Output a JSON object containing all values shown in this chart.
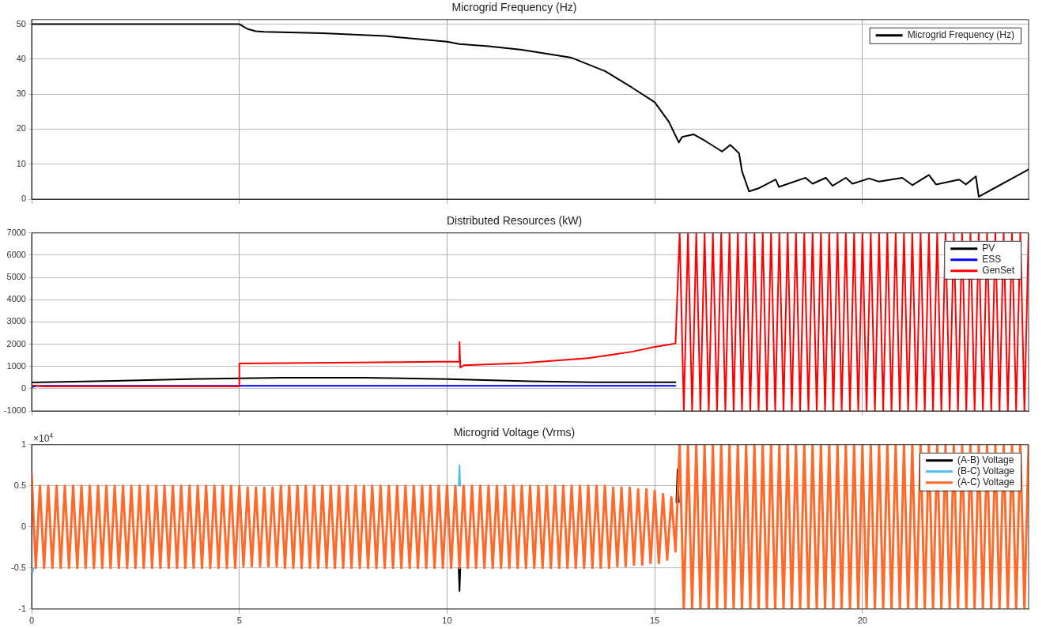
{
  "chart_data": [
    {
      "type": "line",
      "title": "Microgrid Frequency (Hz)",
      "xlim": [
        0,
        24
      ],
      "xticks": [
        0,
        5,
        10,
        15,
        20
      ],
      "ylim": [
        0,
        51.3
      ],
      "yticks": [
        0,
        10,
        20,
        30,
        40,
        50
      ],
      "grid": true,
      "legend": "top right",
      "tick_labels": "y",
      "series": [
        {
          "name": "Microgrid Frequency (Hz)",
          "color": "#000000",
          "x": [
            0,
            5,
            5.1,
            5.2,
            5.4,
            5.6,
            7,
            8.5,
            10,
            10.3,
            11,
            11.8,
            13,
            13.8,
            14.45,
            15,
            15.34,
            15.58,
            15.66,
            15.94,
            16.22,
            16.62,
            16.82,
            17.03,
            17.1,
            17.27,
            17.5,
            17.91,
            17.99,
            18.63,
            18.8,
            19.12,
            19.28,
            19.6,
            19.76,
            20.16,
            20.4,
            20.96,
            21.2,
            21.6,
            21.77,
            22.33,
            22.49,
            22.73,
            22.8,
            24
          ],
          "values": [
            50,
            50,
            49.3,
            48.6,
            48,
            47.8,
            47.4,
            46.6,
            45,
            44.3,
            43.7,
            42.7,
            40.4,
            36.6,
            31.9,
            27.7,
            22.1,
            16.2,
            17.8,
            18.5,
            16.6,
            13.6,
            15.5,
            13.1,
            8,
            2.2,
            3.1,
            5.6,
            3.5,
            6.1,
            4.4,
            6.1,
            3.8,
            6.1,
            4.4,
            5.9,
            5,
            6.1,
            4,
            6.9,
            4.2,
            5.6,
            4.2,
            6.5,
            0.7,
            8.5
          ]
        }
      ]
    },
    {
      "type": "line",
      "title": "Distributed Resources (kW)",
      "xlim": [
        0,
        24
      ],
      "xticks": [
        0,
        5,
        10,
        15,
        20
      ],
      "ylim": [
        -1000,
        7000
      ],
      "yticks": [
        -1000,
        0,
        1000,
        2000,
        3000,
        4000,
        5000,
        6000,
        7000
      ],
      "grid": true,
      "legend": "top right",
      "tick_labels": "y",
      "series": [
        {
          "name": "PV",
          "color": "#000000",
          "x": [
            0,
            2,
            4,
            6,
            8,
            10,
            12,
            13.5,
            15.5
          ],
          "values": [
            280,
            350,
            440,
            490,
            490,
            430,
            330,
            290,
            290
          ]
        },
        {
          "name": "ESS",
          "color": "#0000ff",
          "x": [
            0,
            0.1,
            0.3,
            15.5
          ],
          "values": [
            60,
            120,
            130,
            130
          ]
        },
        {
          "name": "GenSet",
          "color": "#ff0000",
          "x": [
            0,
            0.3,
            5,
            5,
            10.3,
            10.3,
            10.32,
            10.4,
            11.8,
            13.4,
            14.45,
            15,
            15.5,
            15.6,
            15.7,
            15.8,
            15.9,
            16,
            16.1,
            16.2,
            16.3,
            16.4,
            16.5,
            16.6,
            16.7,
            16.8,
            16.9,
            17,
            17.1,
            17.2,
            17.3,
            17.4,
            17.5,
            17.6,
            17.7,
            17.8,
            17.9,
            18,
            18.1,
            18.2,
            18.3,
            18.4,
            18.5,
            18.6,
            18.7,
            18.8,
            18.9,
            19,
            19.1,
            19.2,
            19.3,
            19.4,
            19.5,
            19.6,
            19.7,
            19.8,
            19.9,
            20,
            20.1,
            20.2,
            20.3,
            20.4,
            20.5,
            20.6,
            20.7,
            20.8,
            20.9,
            21,
            21.1,
            21.2,
            21.3,
            21.4,
            21.5,
            21.6,
            21.7,
            21.8,
            21.9,
            22,
            22.1,
            22.2,
            22.3,
            22.4,
            22.5,
            22.6,
            22.7,
            22.8,
            22.9,
            23,
            23.1,
            23.2,
            23.3,
            23.4,
            23.5,
            23.6,
            23.7,
            23.8,
            23.9,
            24
          ],
          "values": [
            150,
            100,
            100,
            1130,
            1220,
            2100,
            950,
            1050,
            1150,
            1370,
            1660,
            1880,
            2030,
            7000,
            -1000,
            7000,
            -1000,
            7000,
            -1000,
            7000,
            -1000,
            7000,
            -1000,
            7000,
            -1000,
            7000,
            -1000,
            7000,
            -1000,
            7000,
            -1000,
            7000,
            -1000,
            7000,
            -1000,
            7000,
            -1000,
            7000,
            -1000,
            7000,
            -1000,
            7000,
            -1000,
            7000,
            -1000,
            7000,
            -1000,
            7000,
            -1000,
            7000,
            -1000,
            7000,
            -1000,
            7000,
            -1000,
            7000,
            -1000,
            7000,
            -1000,
            7000,
            -1000,
            7000,
            -1000,
            7000,
            -1000,
            7000,
            -1000,
            7000,
            -1000,
            7000,
            -1000,
            7000,
            -1000,
            7000,
            -1000,
            7000,
            -1000,
            7000,
            -1000,
            7000,
            -1000,
            7000,
            -1000,
            7000,
            -1000,
            7000,
            -1000,
            7000,
            -1000,
            7000,
            -1000,
            7000,
            -1000,
            7000,
            -1000,
            7000,
            -1000,
            7000
          ]
        }
      ]
    },
    {
      "type": "line",
      "title": "Microgrid Voltage (Vrms)",
      "xlim": [
        0,
        24
      ],
      "xticks": [
        0,
        5,
        10,
        15,
        20
      ],
      "ylim": [
        -1,
        1
      ],
      "yticks": [
        -1,
        -0.5,
        0,
        0.5,
        1
      ],
      "grid": true,
      "legend": "top right",
      "annotations": [
        "×10$^{4}$"
      ],
      "series": [
        {
          "name": "(A-B) Voltage",
          "color": "#000000",
          "x": [
            10.28,
            10.3,
            10.32,
            12,
            15.52,
            15.55,
            15.58
          ],
          "values": [
            -0.5,
            -0.78,
            -0.5,
            null,
            0.3,
            0.7,
            0.3
          ]
        },
        {
          "name": "(B-C) Voltage",
          "color": "#4dbeee",
          "x": [
            0,
            0.02,
            0.05,
            5,
            10.28,
            10.3,
            10.32
          ],
          "values": [
            -0.5,
            -0.55,
            -0.5,
            null,
            0.5,
            0.75,
            0.5
          ]
        },
        {
          "name": "(A-C) Voltage",
          "color": "#ff6a2a",
          "x": [
            0,
            0.1,
            0.2,
            0.3,
            0.4,
            0.5,
            0.6,
            0.7,
            0.8,
            0.9,
            1,
            1.1,
            1.2,
            1.3,
            1.4,
            1.5,
            1.6,
            1.7,
            1.8,
            1.9,
            2,
            2.1,
            2.2,
            2.3,
            2.4,
            2.5,
            2.6,
            2.7,
            2.8,
            2.9,
            3,
            3.1,
            3.2,
            3.3,
            3.4,
            3.5,
            3.6,
            3.7,
            3.8,
            3.9,
            4,
            4.1,
            4.2,
            4.3,
            4.4,
            4.5,
            4.6,
            4.7,
            4.8,
            4.9,
            5,
            5.1,
            5.2,
            5.3,
            5.4,
            5.5,
            5.6,
            5.7,
            5.8,
            5.9,
            6,
            6.1,
            6.2,
            6.3,
            6.4,
            6.5,
            6.6,
            6.7,
            6.8,
            6.9,
            7,
            7.1,
            7.2,
            7.3,
            7.4,
            7.5,
            7.6,
            7.7,
            7.8,
            7.9,
            8,
            8.1,
            8.2,
            8.3,
            8.4,
            8.5,
            8.6,
            8.7,
            8.8,
            8.9,
            9,
            9.1,
            9.2,
            9.3,
            9.4,
            9.5,
            9.6,
            9.7,
            9.8,
            9.9,
            10,
            10.1,
            10.2,
            10.3,
            10.4,
            10.5,
            10.6,
            10.7,
            10.8,
            10.9,
            11,
            11.1,
            11.2,
            11.3,
            11.4,
            11.5,
            11.6,
            11.7,
            11.8,
            11.9,
            12,
            12.1,
            12.2,
            12.3,
            12.4,
            12.5,
            12.6,
            12.7,
            12.8,
            12.9,
            13,
            13.1,
            13.2,
            13.3,
            13.4,
            13.5,
            13.6,
            13.7,
            13.8,
            13.9,
            14,
            14.1,
            14.2,
            14.3,
            14.4,
            14.5,
            14.6,
            14.7,
            14.8,
            14.9,
            15,
            15.1,
            15.2,
            15.3,
            15.4,
            15.5,
            15.6,
            15.7,
            15.8,
            15.9,
            16,
            16.1,
            16.2,
            16.3,
            16.4,
            16.5,
            16.6,
            16.7,
            16.8,
            16.9,
            17,
            17.1,
            17.2,
            17.3,
            17.4,
            17.5,
            17.6,
            17.7,
            17.8,
            17.9,
            18,
            18.1,
            18.2,
            18.3,
            18.4,
            18.5,
            18.6,
            18.7,
            18.8,
            18.9,
            19,
            19.1,
            19.2,
            19.3,
            19.4,
            19.5,
            19.6,
            19.7,
            19.8,
            19.9,
            20,
            20.1,
            20.2,
            20.3,
            20.4,
            20.5,
            20.6,
            20.7,
            20.8,
            20.9,
            21,
            21.1,
            21.2,
            21.3,
            21.4,
            21.5,
            21.6,
            21.7,
            21.8,
            21.9,
            22,
            22.1,
            22.2,
            22.3,
            22.4,
            22.5,
            22.6,
            22.7,
            22.8,
            22.9,
            23,
            23.1,
            23.2,
            23.3,
            23.4,
            23.5,
            23.6,
            23.7,
            23.8,
            23.9,
            24
          ],
          "values": [
            0.65,
            -0.5,
            0.5,
            -0.5,
            0.5,
            -0.5,
            0.5,
            -0.5,
            0.5,
            -0.5,
            0.5,
            -0.5,
            0.5,
            -0.5,
            0.5,
            -0.5,
            0.5,
            -0.5,
            0.5,
            -0.5,
            0.5,
            -0.5,
            0.5,
            -0.5,
            0.5,
            -0.5,
            0.5,
            -0.5,
            0.5,
            -0.5,
            0.5,
            -0.5,
            0.5,
            -0.5,
            0.5,
            -0.5,
            0.5,
            -0.5,
            0.5,
            -0.5,
            0.5,
            -0.5,
            0.5,
            -0.5,
            0.5,
            -0.5,
            0.5,
            -0.5,
            0.5,
            -0.5,
            0.5,
            -0.48,
            0.48,
            -0.48,
            0.48,
            -0.48,
            0.48,
            -0.48,
            0.48,
            -0.48,
            0.5,
            -0.5,
            0.5,
            -0.5,
            0.5,
            -0.5,
            0.5,
            -0.5,
            0.5,
            -0.5,
            0.5,
            -0.5,
            0.5,
            -0.5,
            0.5,
            -0.5,
            0.5,
            -0.5,
            0.5,
            -0.5,
            0.5,
            -0.5,
            0.5,
            -0.5,
            0.5,
            -0.5,
            0.5,
            -0.5,
            0.5,
            -0.5,
            0.5,
            -0.5,
            0.5,
            -0.5,
            0.5,
            -0.5,
            0.5,
            -0.5,
            0.5,
            -0.5,
            0.5,
            -0.5,
            0.5,
            -0.5,
            0.5,
            -0.5,
            0.5,
            -0.5,
            0.5,
            -0.5,
            0.5,
            -0.5,
            0.5,
            -0.5,
            0.5,
            -0.5,
            0.5,
            -0.5,
            0.5,
            -0.5,
            0.5,
            -0.5,
            0.5,
            -0.5,
            0.5,
            -0.5,
            0.5,
            -0.5,
            0.5,
            -0.5,
            0.5,
            -0.5,
            0.5,
            -0.5,
            0.5,
            -0.5,
            0.5,
            -0.5,
            0.5,
            -0.5,
            0.48,
            -0.48,
            0.48,
            -0.48,
            0.48,
            -0.46,
            0.46,
            -0.46,
            0.46,
            -0.44,
            0.44,
            -0.44,
            0.4,
            -0.4,
            0.36,
            -0.3,
            1,
            -1,
            1,
            -1,
            1,
            -1,
            1,
            -1,
            1,
            -1,
            1,
            -1,
            1,
            -1,
            1,
            -1,
            1,
            -1,
            1,
            -1,
            1,
            -1,
            1,
            -1,
            1,
            -1,
            1,
            -1,
            1,
            -1,
            1,
            -1,
            1,
            -1,
            1,
            -1,
            1,
            -1,
            1,
            -1,
            1,
            -1,
            1,
            -1,
            1,
            -1,
            1,
            -1,
            1,
            -1,
            1,
            -1,
            1,
            -1,
            1,
            -1,
            1,
            -1,
            1,
            -1,
            1,
            -1,
            1,
            -1,
            1,
            -1,
            1,
            -1,
            1,
            -1,
            1,
            -1,
            1,
            -1,
            1,
            -1,
            1,
            -1,
            1,
            -1,
            1,
            -1,
            1,
            -1,
            1
          ]
        }
      ]
    }
  ]
}
